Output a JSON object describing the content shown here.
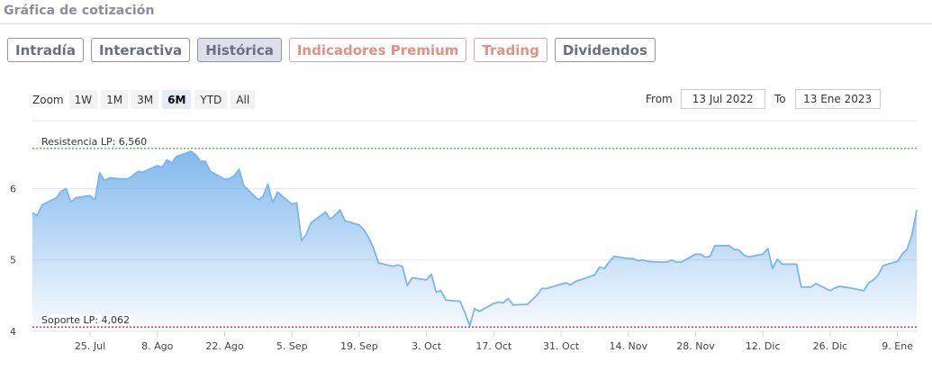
{
  "section_title": "Gráfica de cotización",
  "tabs": [
    {
      "label": "Intradía",
      "kind": "normal"
    },
    {
      "label": "Interactiva",
      "kind": "normal"
    },
    {
      "label": "Histórica",
      "kind": "active"
    },
    {
      "label": "Indicadores Premium",
      "kind": "premium"
    },
    {
      "label": "Trading",
      "kind": "premium"
    },
    {
      "label": "Dividendos",
      "kind": "normal"
    }
  ],
  "zoom": {
    "label": "Zoom",
    "options": [
      "1W",
      "1M",
      "3M",
      "6M",
      "YTD",
      "All"
    ],
    "selected": "6M"
  },
  "range": {
    "from_label": "From",
    "from_value": "13 Jul 2022",
    "to_label": "To",
    "to_value": "13 Ene 2023"
  },
  "colors": {
    "series_line": "#7cb5ec",
    "area_top": "#7cb5ec",
    "resistance_line": "#2e7d32",
    "support_line": "#8b0000",
    "gridline": "#e6e6e6"
  },
  "chart_data": {
    "type": "area",
    "title": "",
    "xlabel": "",
    "ylabel": "",
    "ylim": [
      4,
      6.95
    ],
    "yticks": [
      4,
      5,
      6
    ],
    "ytick_labels": [
      "4",
      "5",
      "6"
    ],
    "grid": true,
    "x_ticks": [
      {
        "date": "2022-07-25",
        "label": "25. Jul"
      },
      {
        "date": "2022-08-08",
        "label": "8. Ago"
      },
      {
        "date": "2022-08-22",
        "label": "22. Ago"
      },
      {
        "date": "2022-09-05",
        "label": "5. Sep"
      },
      {
        "date": "2022-09-19",
        "label": "19. Sep"
      },
      {
        "date": "2022-10-03",
        "label": "3. Oct"
      },
      {
        "date": "2022-10-17",
        "label": "17. Oct"
      },
      {
        "date": "2022-10-31",
        "label": "31. Oct"
      },
      {
        "date": "2022-11-14",
        "label": "14. Nov"
      },
      {
        "date": "2022-11-28",
        "label": "28. Nov"
      },
      {
        "date": "2022-12-12",
        "label": "12. Dic"
      },
      {
        "date": "2022-12-26",
        "label": "26. Dic"
      },
      {
        "date": "2023-01-09",
        "label": "9. Ene"
      }
    ],
    "reference_lines": [
      {
        "label": "Resistencia LP: 6,560",
        "value": 6.56,
        "style": "dashed",
        "kind": "resistance"
      },
      {
        "label": "Soporte LP: 4,062",
        "value": 4.062,
        "style": "dashed",
        "kind": "support"
      }
    ],
    "series": [
      {
        "x": [
          "2022-07-13",
          "2022-07-14",
          "2022-07-15",
          "2022-07-18",
          "2022-07-19",
          "2022-07-20",
          "2022-07-21",
          "2022-07-22",
          "2022-07-25",
          "2022-07-26",
          "2022-07-27",
          "2022-07-28",
          "2022-07-29",
          "2022-08-01",
          "2022-08-02",
          "2022-08-03",
          "2022-08-04",
          "2022-08-05",
          "2022-08-08",
          "2022-08-09",
          "2022-08-10",
          "2022-08-11",
          "2022-08-12",
          "2022-08-15",
          "2022-08-16",
          "2022-08-17",
          "2022-08-18",
          "2022-08-19",
          "2022-08-22",
          "2022-08-23",
          "2022-08-24",
          "2022-08-25",
          "2022-08-26",
          "2022-08-29",
          "2022-08-30",
          "2022-08-31",
          "2022-09-01",
          "2022-09-02",
          "2022-09-05",
          "2022-09-06",
          "2022-09-07",
          "2022-09-08",
          "2022-09-09",
          "2022-09-12",
          "2022-09-13",
          "2022-09-14",
          "2022-09-15",
          "2022-09-16",
          "2022-09-19",
          "2022-09-20",
          "2022-09-21",
          "2022-09-22",
          "2022-09-23",
          "2022-09-26",
          "2022-09-27",
          "2022-09-28",
          "2022-09-29",
          "2022-09-30",
          "2022-10-03",
          "2022-10-04",
          "2022-10-05",
          "2022-10-06",
          "2022-10-07",
          "2022-10-10",
          "2022-10-11",
          "2022-10-12",
          "2022-10-13",
          "2022-10-14",
          "2022-10-17",
          "2022-10-18",
          "2022-10-19",
          "2022-10-20",
          "2022-10-21",
          "2022-10-24",
          "2022-10-25",
          "2022-10-26",
          "2022-10-27",
          "2022-10-28",
          "2022-10-31",
          "2022-11-01",
          "2022-11-02",
          "2022-11-03",
          "2022-11-04",
          "2022-11-07",
          "2022-11-08",
          "2022-11-09",
          "2022-11-10",
          "2022-11-11",
          "2022-11-14",
          "2022-11-15",
          "2022-11-16",
          "2022-11-17",
          "2022-11-18",
          "2022-11-21",
          "2022-11-22",
          "2022-11-23",
          "2022-11-24",
          "2022-11-25",
          "2022-11-28",
          "2022-11-29",
          "2022-11-30",
          "2022-12-01",
          "2022-12-02",
          "2022-12-05",
          "2022-12-06",
          "2022-12-07",
          "2022-12-08",
          "2022-12-09",
          "2022-12-12",
          "2022-12-13",
          "2022-12-14",
          "2022-12-15",
          "2022-12-16",
          "2022-12-19",
          "2022-12-20",
          "2022-12-21",
          "2022-12-22",
          "2022-12-23",
          "2022-12-26",
          "2022-12-27",
          "2022-12-28",
          "2022-12-29",
          "2022-12-30",
          "2023-01-02",
          "2023-01-03",
          "2023-01-04",
          "2023-01-05",
          "2023-01-06",
          "2023-01-09",
          "2023-01-10",
          "2023-01-11",
          "2023-01-12",
          "2023-01-13"
        ],
        "values": [
          5.66,
          5.62,
          5.77,
          5.87,
          5.96,
          6.0,
          5.81,
          5.87,
          5.9,
          5.84,
          6.22,
          6.11,
          6.15,
          6.13,
          6.14,
          6.19,
          6.24,
          6.23,
          6.32,
          6.3,
          6.4,
          6.36,
          6.45,
          6.52,
          6.47,
          6.38,
          6.38,
          6.24,
          6.13,
          6.14,
          6.18,
          6.27,
          6.04,
          5.84,
          5.89,
          6.06,
          5.8,
          5.95,
          5.78,
          5.8,
          5.27,
          5.36,
          5.52,
          5.67,
          5.57,
          5.63,
          5.7,
          5.55,
          5.49,
          5.42,
          5.31,
          5.16,
          4.96,
          4.91,
          4.93,
          4.91,
          4.64,
          4.75,
          4.72,
          4.8,
          4.55,
          4.57,
          4.44,
          4.42,
          4.26,
          4.08,
          4.32,
          4.28,
          4.39,
          4.41,
          4.4,
          4.46,
          4.37,
          4.38,
          4.44,
          4.51,
          4.6,
          4.6,
          4.66,
          4.68,
          4.65,
          4.7,
          4.72,
          4.79,
          4.9,
          4.88,
          4.97,
          5.05,
          5.02,
          5.02,
          4.99,
          5.0,
          4.98,
          4.97,
          4.97,
          5.0,
          4.97,
          4.97,
          5.08,
          5.08,
          5.04,
          5.05,
          5.2,
          5.2,
          5.15,
          5.14,
          5.07,
          5.04,
          5.08,
          5.16,
          4.88,
          5.01,
          4.94,
          4.94,
          4.62,
          4.62,
          4.62,
          4.67,
          4.57,
          4.61,
          4.63,
          4.62,
          4.61,
          4.57,
          4.68,
          4.72,
          4.79,
          4.92,
          4.98,
          5.08,
          5.15,
          5.35,
          5.7
        ]
      }
    ]
  }
}
